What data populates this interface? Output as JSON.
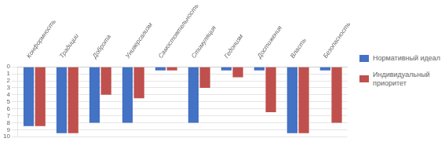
{
  "chart_data": {
    "type": "bar",
    "categories": [
      "Конформность",
      "Традиции",
      "Доброта",
      "Универсализм",
      "Самостоятельность",
      "Стимуляция",
      "Гедонизм",
      "Достижения",
      "Власть",
      "Безопасность"
    ],
    "series": [
      {
        "name": "Нормативный идеал",
        "color": "#4472C4",
        "values": [
          8.5,
          9.5,
          8.0,
          8.0,
          0.5,
          8.0,
          0.5,
          0.5,
          9.5,
          0.5
        ]
      },
      {
        "name": "Индивидуальный\nприоритет",
        "color": "#C0504D",
        "values": [
          8.5,
          9.5,
          4.0,
          4.5,
          0.5,
          3.0,
          1.5,
          6.5,
          9.5,
          8.0
        ]
      }
    ],
    "ylim": [
      0,
      10
    ],
    "yticks": [
      0,
      1,
      2,
      3,
      4,
      5,
      6,
      7,
      8,
      9,
      10
    ],
    "grid": true,
    "legend": "right"
  }
}
